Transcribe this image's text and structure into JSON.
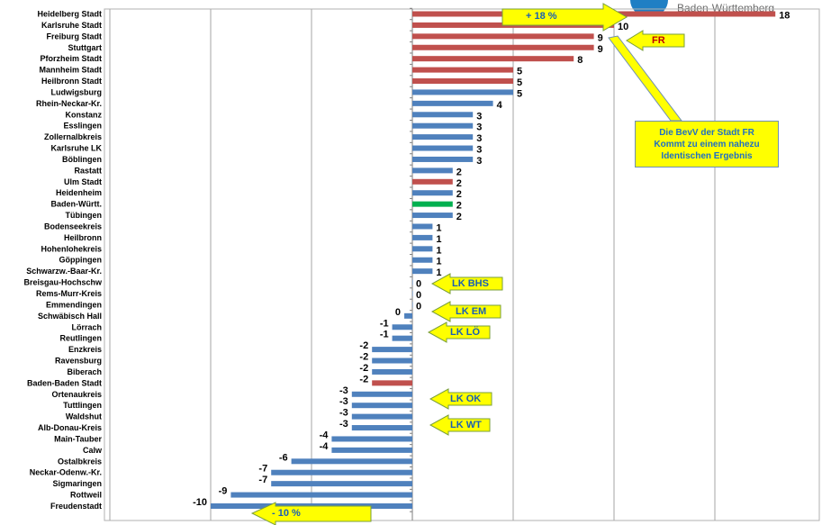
{
  "chart_data": {
    "type": "bar",
    "orientation": "horizontal",
    "categories": [
      "Heidelberg Stadt",
      "Karlsruhe Stadt",
      "Freiburg Stadt",
      "Stuttgart",
      "Pforzheim Stadt",
      "Mannheim Stadt",
      "Heilbronn Stadt",
      "Ludwigsburg",
      "Rhein-Neckar-Kr.",
      "Konstanz",
      "Esslingen",
      "Zollernalbkreis",
      "Karlsruhe LK",
      "Böblingen",
      "Rastatt",
      "Ulm Stadt",
      "Heidenheim",
      "Baden-Württ.",
      "Tübingen",
      "Bodenseekreis",
      "Heilbronn",
      "Hohenlohekreis",
      "Göppingen",
      "Schwarzw.-Baar-Kr.",
      "Breisgau-Hochschw",
      "Rems-Murr-Kreis",
      "Emmendingen",
      "Schwäbisch Hall",
      "Lörrach",
      "Reutlingen",
      "Enzkreis",
      "Ravensburg",
      "Biberach",
      "Baden-Baden Stadt",
      "Ortenaukreis",
      "Tuttlingen",
      "Waldshut",
      "Alb-Donau-Kreis",
      "Main-Tauber",
      "Calw",
      "Ostalbkreis",
      "Neckar-Odenw.-Kr.",
      "Sigmaringen",
      "Rottweil",
      "Freudenstadt"
    ],
    "values": [
      18,
      10,
      9,
      9,
      8,
      5,
      5,
      5,
      4,
      3,
      3,
      3,
      3,
      3,
      2,
      2,
      2,
      2,
      2,
      1,
      1,
      1,
      1,
      1,
      0,
      0,
      0,
      -0.4,
      -1,
      -1,
      -2,
      -2,
      -2,
      -2,
      -3,
      -3,
      -3,
      -3,
      -4,
      -4,
      -6,
      -7,
      -7,
      -9,
      -10
    ],
    "data_labels": [
      "18",
      "10",
      "9",
      "9",
      "8",
      "5",
      "5",
      "5",
      "4",
      "3",
      "3",
      "3",
      "3",
      "3",
      "2",
      "2",
      "2",
      "2",
      "2",
      "1",
      "1",
      "1",
      "1",
      "1",
      "0",
      "0",
      "0",
      "0",
      "-1",
      "-1",
      "-2",
      "-2",
      "-2",
      "-2",
      "-3",
      "-3",
      "-3",
      "-3",
      "-4",
      "-4",
      "-6",
      "-7",
      "-7",
      "-9",
      "-10"
    ],
    "bar_colors": [
      "red",
      "red",
      "red",
      "red",
      "red",
      "red",
      "red",
      "blue",
      "blue",
      "blue",
      "blue",
      "blue",
      "blue",
      "blue",
      "blue",
      "red",
      "blue",
      "green",
      "blue",
      "blue",
      "blue",
      "blue",
      "blue",
      "blue",
      "blue",
      "blue",
      "blue",
      "blue",
      "blue",
      "blue",
      "blue",
      "blue",
      "blue",
      "red",
      "blue",
      "blue",
      "blue",
      "blue",
      "blue",
      "blue",
      "blue",
      "blue",
      "blue",
      "blue",
      "blue"
    ],
    "xlim": [
      -17,
      19
    ],
    "grid": "vertical",
    "colors": {
      "red": "#c0504d",
      "blue": "#4f81bd",
      "green": "#00b050"
    }
  },
  "annotations": {
    "plus18": "+ 18 %",
    "minus10": "- 10 %",
    "fr": "FR",
    "lk_bhs": "LK BHS",
    "lk_em": "LK EM",
    "lk_lo": "LK LÖ",
    "lk_ok": "LK OK",
    "lk_wt": "LK WT",
    "note_lines": [
      "Die BevV der Stadt FR",
      "Kommt zu einem nahezu",
      "Identischen Ergebnis"
    ]
  },
  "logo": {
    "text": "Baden-Württemberg"
  }
}
